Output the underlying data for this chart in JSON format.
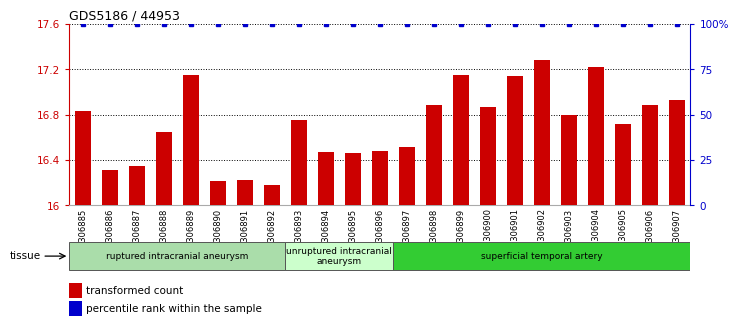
{
  "title": "GDS5186 / 44953",
  "samples": [
    "GSM1306885",
    "GSM1306886",
    "GSM1306887",
    "GSM1306888",
    "GSM1306889",
    "GSM1306890",
    "GSM1306891",
    "GSM1306892",
    "GSM1306893",
    "GSM1306894",
    "GSM1306895",
    "GSM1306896",
    "GSM1306897",
    "GSM1306898",
    "GSM1306899",
    "GSM1306900",
    "GSM1306901",
    "GSM1306902",
    "GSM1306903",
    "GSM1306904",
    "GSM1306905",
    "GSM1306906",
    "GSM1306907"
  ],
  "bar_values": [
    16.83,
    16.31,
    16.35,
    16.65,
    17.15,
    16.21,
    16.22,
    16.18,
    16.75,
    16.47,
    16.46,
    16.48,
    16.51,
    16.88,
    17.15,
    16.87,
    17.14,
    17.28,
    16.8,
    17.22,
    16.72,
    16.88,
    16.93
  ],
  "percentile_values": [
    100,
    100,
    100,
    100,
    100,
    100,
    100,
    100,
    100,
    100,
    100,
    100,
    100,
    100,
    100,
    100,
    100,
    100,
    100,
    100,
    100,
    100,
    100
  ],
  "bar_color": "#cc0000",
  "percentile_color": "#0000cc",
  "ylim_left": [
    16.0,
    17.6
  ],
  "ylim_right": [
    0,
    100
  ],
  "yticks_left": [
    16.0,
    16.4,
    16.8,
    17.2,
    17.6
  ],
  "ytick_labels_left": [
    "16",
    "16.4",
    "16.8",
    "17.2",
    "17.6"
  ],
  "yticks_right": [
    0,
    25,
    50,
    75,
    100
  ],
  "ytick_labels_right": [
    "0",
    "25",
    "50",
    "75",
    "100%"
  ],
  "groups": [
    {
      "label": "ruptured intracranial aneurysm",
      "start": 0,
      "end": 8,
      "color": "#aaddaa"
    },
    {
      "label": "unruptured intracranial\naneurysm",
      "start": 8,
      "end": 12,
      "color": "#ccffcc"
    },
    {
      "label": "superficial temporal artery",
      "start": 12,
      "end": 23,
      "color": "#33cc33"
    }
  ],
  "tissue_label": "tissue",
  "legend_bar_label": "transformed count",
  "legend_dot_label": "percentile rank within the sample",
  "plot_bg_color": "#ffffff",
  "tick_bg_color": "#dddddd"
}
